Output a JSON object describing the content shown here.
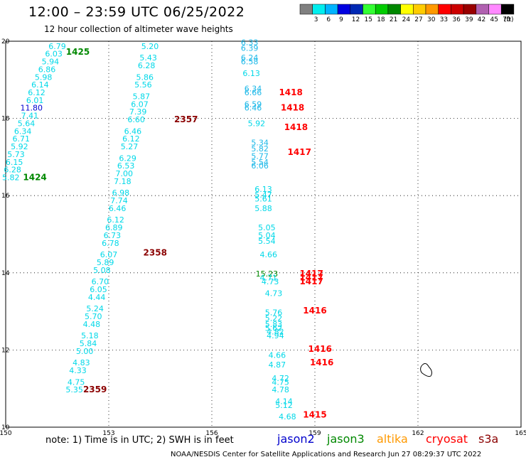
{
  "header": {
    "title": "12:00 – 23:59 UTC 06/25/2022",
    "subtitle": "12 hour collection of altimeter wave heights"
  },
  "legend": {
    "swatches": [
      {
        "color": "#808080",
        "label": ""
      },
      {
        "color": "#00eeee",
        "label": "3"
      },
      {
        "color": "#00b4ff",
        "label": "6"
      },
      {
        "color": "#0000e0",
        "label": "9"
      },
      {
        "color": "#0028b4",
        "label": "12"
      },
      {
        "color": "#33ff33",
        "label": "15"
      },
      {
        "color": "#00cc00",
        "label": "18"
      },
      {
        "color": "#008800",
        "label": "21"
      },
      {
        "color": "#ffff00",
        "label": "24"
      },
      {
        "color": "#ffcc00",
        "label": "27"
      },
      {
        "color": "#ff9900",
        "label": "30"
      },
      {
        "color": "#ff0000",
        "label": "33"
      },
      {
        "color": "#cc0000",
        "label": "36"
      },
      {
        "color": "#990000",
        "label": "39"
      },
      {
        "color": "#b060b0",
        "label": "42"
      },
      {
        "color": "#ff88ff",
        "label": "45"
      },
      {
        "color": "#000000",
        "label": "70"
      }
    ],
    "unit": "(ft)"
  },
  "map": {
    "lon_ticks": [
      "150",
      "153",
      "156",
      "159",
      "162",
      "165"
    ],
    "lat_ticks": [
      "20",
      "18",
      "16",
      "14",
      "12",
      "10"
    ]
  },
  "colors": {
    "cyan": "#00d8e8",
    "lightblue": "#1cb8e8",
    "blue": "#0000d0",
    "green": "#008800",
    "maroon": "#8b0000",
    "red": "#ff0000"
  },
  "observations": [
    {
      "v": "6.79",
      "lon": 151.5,
      "lat": 19.8,
      "c": "cyan"
    },
    {
      "v": "6.03",
      "lon": 151.4,
      "lat": 19.6,
      "c": "cyan"
    },
    {
      "v": "5.94",
      "lon": 151.3,
      "lat": 19.4,
      "c": "cyan"
    },
    {
      "v": "6.86",
      "lon": 151.2,
      "lat": 19.2,
      "c": "cyan"
    },
    {
      "v": "5.98",
      "lon": 151.1,
      "lat": 19.0,
      "c": "cyan"
    },
    {
      "v": "6.14",
      "lon": 151.0,
      "lat": 18.8,
      "c": "cyan"
    },
    {
      "v": "6.12",
      "lon": 150.9,
      "lat": 18.6,
      "c": "cyan"
    },
    {
      "v": "6.01",
      "lon": 150.85,
      "lat": 18.4,
      "c": "cyan"
    },
    {
      "v": "11.80",
      "lon": 150.75,
      "lat": 18.2,
      "c": "blue"
    },
    {
      "v": "7.41",
      "lon": 150.7,
      "lat": 18.0,
      "c": "cyan"
    },
    {
      "v": "5.64",
      "lon": 150.6,
      "lat": 17.8,
      "c": "cyan"
    },
    {
      "v": "6.34",
      "lon": 150.5,
      "lat": 17.6,
      "c": "cyan"
    },
    {
      "v": "6.71",
      "lon": 150.45,
      "lat": 17.4,
      "c": "cyan"
    },
    {
      "v": "5.92",
      "lon": 150.4,
      "lat": 17.2,
      "c": "cyan"
    },
    {
      "v": "5.73",
      "lon": 150.3,
      "lat": 17.0,
      "c": "cyan"
    },
    {
      "v": "6.15",
      "lon": 150.25,
      "lat": 16.8,
      "c": "cyan"
    },
    {
      "v": "6.28",
      "lon": 150.2,
      "lat": 16.6,
      "c": "cyan"
    },
    {
      "v": "5.82",
      "lon": 150.15,
      "lat": 16.4,
      "c": "cyan"
    },
    {
      "v": "5.20",
      "lon": 154.2,
      "lat": 19.8,
      "c": "cyan"
    },
    {
      "v": "5.43",
      "lon": 154.15,
      "lat": 19.5,
      "c": "cyan"
    },
    {
      "v": "6.28",
      "lon": 154.1,
      "lat": 19.3,
      "c": "cyan"
    },
    {
      "v": "5.86",
      "lon": 154.05,
      "lat": 19.0,
      "c": "cyan"
    },
    {
      "v": "5.56",
      "lon": 154.0,
      "lat": 18.8,
      "c": "cyan"
    },
    {
      "v": "5.87",
      "lon": 153.95,
      "lat": 18.5,
      "c": "cyan"
    },
    {
      "v": "6.07",
      "lon": 153.9,
      "lat": 18.3,
      "c": "cyan"
    },
    {
      "v": "7.39",
      "lon": 153.85,
      "lat": 18.1,
      "c": "cyan"
    },
    {
      "v": "6.60",
      "lon": 153.8,
      "lat": 17.9,
      "c": "cyan"
    },
    {
      "v": "6.46",
      "lon": 153.7,
      "lat": 17.6,
      "c": "cyan"
    },
    {
      "v": "6.12",
      "lon": 153.65,
      "lat": 17.4,
      "c": "cyan"
    },
    {
      "v": "5.27",
      "lon": 153.6,
      "lat": 17.2,
      "c": "cyan"
    },
    {
      "v": "6.29",
      "lon": 153.55,
      "lat": 16.9,
      "c": "cyan"
    },
    {
      "v": "6.53",
      "lon": 153.5,
      "lat": 16.7,
      "c": "cyan"
    },
    {
      "v": "7.00",
      "lon": 153.45,
      "lat": 16.5,
      "c": "cyan"
    },
    {
      "v": "7.18",
      "lon": 153.4,
      "lat": 16.3,
      "c": "cyan"
    },
    {
      "v": "6.98",
      "lon": 153.35,
      "lat": 16.0,
      "c": "cyan"
    },
    {
      "v": "7.74",
      "lon": 153.3,
      "lat": 15.8,
      "c": "cyan"
    },
    {
      "v": "6.46",
      "lon": 153.25,
      "lat": 15.6,
      "c": "cyan"
    },
    {
      "v": "6.12",
      "lon": 153.2,
      "lat": 15.3,
      "c": "cyan"
    },
    {
      "v": "6.89",
      "lon": 153.15,
      "lat": 15.1,
      "c": "cyan"
    },
    {
      "v": "6.73",
      "lon": 153.1,
      "lat": 14.9,
      "c": "cyan"
    },
    {
      "v": "6.78",
      "lon": 153.05,
      "lat": 14.7,
      "c": "cyan"
    },
    {
      "v": "6.07",
      "lon": 153.0,
      "lat": 14.4,
      "c": "cyan"
    },
    {
      "v": "5.89",
      "lon": 152.9,
      "lat": 14.2,
      "c": "cyan"
    },
    {
      "v": "5.08",
      "lon": 152.8,
      "lat": 14.0,
      "c": "cyan"
    },
    {
      "v": "6.70",
      "lon": 152.75,
      "lat": 13.7,
      "c": "cyan"
    },
    {
      "v": "6.05",
      "lon": 152.7,
      "lat": 13.5,
      "c": "cyan"
    },
    {
      "v": "4.44",
      "lon": 152.65,
      "lat": 13.3,
      "c": "cyan"
    },
    {
      "v": "5.24",
      "lon": 152.6,
      "lat": 13.0,
      "c": "cyan"
    },
    {
      "v": "5.70",
      "lon": 152.55,
      "lat": 12.8,
      "c": "cyan"
    },
    {
      "v": "4.48",
      "lon": 152.5,
      "lat": 12.6,
      "c": "cyan"
    },
    {
      "v": "5.18",
      "lon": 152.45,
      "lat": 12.3,
      "c": "cyan"
    },
    {
      "v": "5.84",
      "lon": 152.4,
      "lat": 12.1,
      "c": "cyan"
    },
    {
      "v": "5.00",
      "lon": 152.3,
      "lat": 11.9,
      "c": "cyan"
    },
    {
      "v": "4.83",
      "lon": 152.2,
      "lat": 11.6,
      "c": "cyan"
    },
    {
      "v": "4.33",
      "lon": 152.1,
      "lat": 11.4,
      "c": "cyan"
    },
    {
      "v": "4.75",
      "lon": 152.05,
      "lat": 11.1,
      "c": "cyan"
    },
    {
      "v": "5.35",
      "lon": 152.0,
      "lat": 10.9,
      "c": "cyan"
    },
    {
      "v": "6.33",
      "lon": 157.1,
      "lat": 19.9,
      "c": "lightblue"
    },
    {
      "v": "6.39",
      "lon": 157.1,
      "lat": 19.75,
      "c": "lightblue"
    },
    {
      "v": "6.24",
      "lon": 157.1,
      "lat": 19.5,
      "c": "lightblue"
    },
    {
      "v": "6.58",
      "lon": 157.1,
      "lat": 19.4,
      "c": "lightblue"
    },
    {
      "v": "6.13",
      "lon": 157.15,
      "lat": 19.1,
      "c": "cyan"
    },
    {
      "v": "6.34",
      "lon": 157.2,
      "lat": 18.7,
      "c": "lightblue"
    },
    {
      "v": "6.66",
      "lon": 157.2,
      "lat": 18.6,
      "c": "lightblue"
    },
    {
      "v": "6.59",
      "lon": 157.2,
      "lat": 18.3,
      "c": "lightblue"
    },
    {
      "v": "6.46",
      "lon": 157.2,
      "lat": 18.2,
      "c": "lightblue"
    },
    {
      "v": "5.92",
      "lon": 157.3,
      "lat": 17.8,
      "c": "cyan"
    },
    {
      "v": "5.34",
      "lon": 157.4,
      "lat": 17.3,
      "c": "lightblue"
    },
    {
      "v": "5.82",
      "lon": 157.4,
      "lat": 17.15,
      "c": "lightblue"
    },
    {
      "v": "5.77",
      "lon": 157.4,
      "lat": 16.95,
      "c": "lightblue"
    },
    {
      "v": "5.54",
      "lon": 157.4,
      "lat": 16.8,
      "c": "lightblue"
    },
    {
      "v": "6.06",
      "lon": 157.4,
      "lat": 16.7,
      "c": "lightblue"
    },
    {
      "v": "6.13",
      "lon": 157.5,
      "lat": 16.1,
      "c": "cyan"
    },
    {
      "v": "5.47",
      "lon": 157.5,
      "lat": 15.95,
      "c": "cyan"
    },
    {
      "v": "5.61",
      "lon": 157.5,
      "lat": 15.85,
      "c": "cyan"
    },
    {
      "v": "5.88",
      "lon": 157.5,
      "lat": 15.6,
      "c": "cyan"
    },
    {
      "v": "5.05",
      "lon": 157.6,
      "lat": 15.1,
      "c": "cyan"
    },
    {
      "v": "5.04",
      "lon": 157.6,
      "lat": 14.9,
      "c": "cyan"
    },
    {
      "v": "5.54",
      "lon": 157.6,
      "lat": 14.75,
      "c": "cyan"
    },
    {
      "v": "4.66",
      "lon": 157.65,
      "lat": 14.4,
      "c": "cyan"
    },
    {
      "v": "15.23",
      "lon": 157.6,
      "lat": 13.9,
      "c": "green"
    },
    {
      "v": "4.71",
      "lon": 157.65,
      "lat": 13.8,
      "c": "cyan"
    },
    {
      "v": "4.73",
      "lon": 157.7,
      "lat": 13.7,
      "c": "cyan"
    },
    {
      "v": "4.73",
      "lon": 157.8,
      "lat": 13.4,
      "c": "cyan"
    },
    {
      "v": "5.76",
      "lon": 157.8,
      "lat": 12.9,
      "c": "cyan"
    },
    {
      "v": "5.22",
      "lon": 157.8,
      "lat": 12.75,
      "c": "cyan"
    },
    {
      "v": "5.83",
      "lon": 157.8,
      "lat": 12.6,
      "c": "cyan"
    },
    {
      "v": "5.62",
      "lon": 157.8,
      "lat": 12.5,
      "c": "cyan"
    },
    {
      "v": "4.82",
      "lon": 157.85,
      "lat": 12.4,
      "c": "cyan"
    },
    {
      "v": "4.94",
      "lon": 157.85,
      "lat": 12.3,
      "c": "cyan"
    },
    {
      "v": "4.66",
      "lon": 157.9,
      "lat": 11.8,
      "c": "cyan"
    },
    {
      "v": "4.87",
      "lon": 157.9,
      "lat": 11.55,
      "c": "cyan"
    },
    {
      "v": "4.72",
      "lon": 158.0,
      "lat": 11.2,
      "c": "cyan"
    },
    {
      "v": "4.75",
      "lon": 158.0,
      "lat": 11.1,
      "c": "cyan"
    },
    {
      "v": "4.78",
      "lon": 158.0,
      "lat": 10.9,
      "c": "cyan"
    },
    {
      "v": "4.14",
      "lon": 158.1,
      "lat": 10.6,
      "c": "cyan"
    },
    {
      "v": "5.12",
      "lon": 158.1,
      "lat": 10.5,
      "c": "cyan"
    },
    {
      "v": "4.68",
      "lon": 158.2,
      "lat": 10.2,
      "c": "cyan"
    }
  ],
  "times": [
    {
      "t": "1425",
      "lon": 152.1,
      "lat": 19.65,
      "c": "green"
    },
    {
      "t": "1424",
      "lon": 150.85,
      "lat": 16.4,
      "c": "green"
    },
    {
      "t": "2357",
      "lon": 155.25,
      "lat": 17.9,
      "c": "maroon"
    },
    {
      "t": "2358",
      "lon": 154.35,
      "lat": 14.45,
      "c": "maroon"
    },
    {
      "t": "2359",
      "lon": 152.6,
      "lat": 10.9,
      "c": "maroon"
    },
    {
      "t": "1418",
      "lon": 158.3,
      "lat": 18.6,
      "c": "red"
    },
    {
      "t": "1418",
      "lon": 158.35,
      "lat": 18.2,
      "c": "red"
    },
    {
      "t": "1418",
      "lon": 158.45,
      "lat": 17.7,
      "c": "red"
    },
    {
      "t": "1417",
      "lon": 158.55,
      "lat": 17.05,
      "c": "red"
    },
    {
      "t": "1417",
      "lon": 158.9,
      "lat": 13.9,
      "c": "red"
    },
    {
      "t": "1417",
      "lon": 158.9,
      "lat": 13.8,
      "c": "red"
    },
    {
      "t": "1417",
      "lon": 158.9,
      "lat": 13.7,
      "c": "red"
    },
    {
      "t": "1416",
      "lon": 159.0,
      "lat": 12.95,
      "c": "red"
    },
    {
      "t": "1416",
      "lon": 159.15,
      "lat": 11.95,
      "c": "red"
    },
    {
      "t": "1416",
      "lon": 159.2,
      "lat": 11.6,
      "c": "red"
    },
    {
      "t": "1415",
      "lon": 159.0,
      "lat": 10.25,
      "c": "red"
    }
  ],
  "footer": {
    "note": "note: 1) Time is in UTC; 2) SWH is in feet",
    "satellites": [
      {
        "name": "jason2",
        "color": "#0000cc"
      },
      {
        "name": "jason3",
        "color": "#008800"
      },
      {
        "name": "altika",
        "color": "#ff9900"
      },
      {
        "name": "cryosat",
        "color": "#ff0000"
      },
      {
        "name": "s3a",
        "color": "#8b0000"
      }
    ],
    "credit": "NOAA/NESDIS Center for Satellite Applications and Research    Jun 27 08:29:37 UTC 2022"
  }
}
